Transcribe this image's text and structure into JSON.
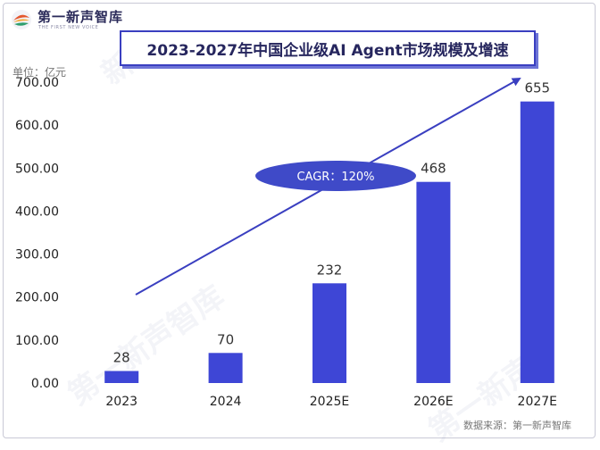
{
  "brand": {
    "name": "第一新声智库",
    "tagline": "THE FIRST NEW VOICE"
  },
  "header": {
    "title": "2023-2027年中国企业级AI Agent市场规模及增速"
  },
  "unit_label": "单位：亿元",
  "source_label": "数据来源：第一新声智库",
  "cagr_label": "CAGR：120%",
  "colors": {
    "bar": "#3e46d6",
    "accent": "#3a3fc0",
    "ellipse": "#3f4ac8"
  },
  "chart_data": {
    "type": "bar",
    "title": "2023-2027年中国企业级AI Agent市场规模及增速",
    "categories": [
      "2023",
      "2024",
      "2025E",
      "2026E",
      "2027E"
    ],
    "values": [
      28,
      70,
      232,
      468,
      655
    ],
    "value_labels": [
      "28",
      "70",
      "232",
      "468",
      "655"
    ],
    "ylim": [
      0,
      700
    ],
    "yticks": [
      "0.00",
      "100.00",
      "200.00",
      "300.00",
      "400.00",
      "500.00",
      "600.00",
      "700.00"
    ],
    "ytick_values": [
      0,
      100,
      200,
      300,
      400,
      500,
      600,
      700
    ],
    "xlabel": "",
    "ylabel": "单位：亿元",
    "grid": false,
    "annotations": [
      "CAGR：120%"
    ]
  }
}
